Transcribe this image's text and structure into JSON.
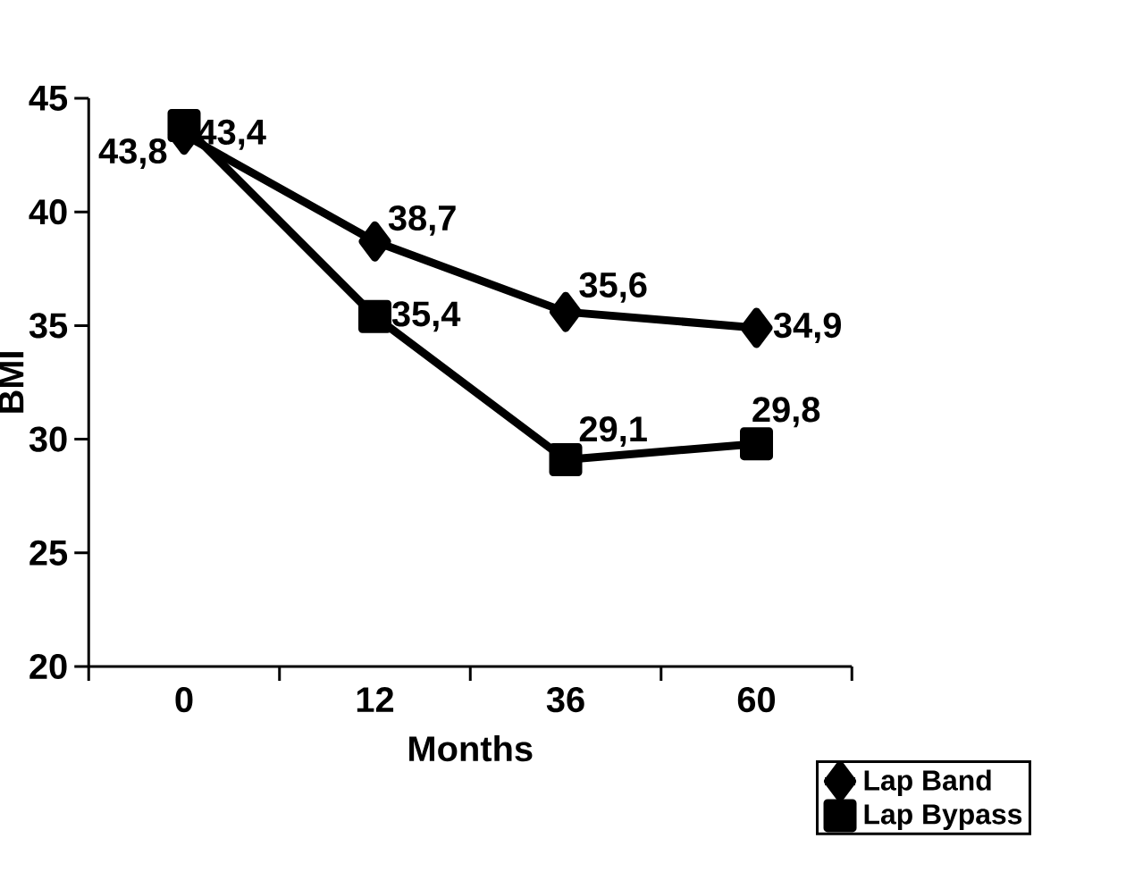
{
  "chart_data": {
    "type": "line",
    "xlabel": "Months",
    "ylabel": "BMI",
    "categories": [
      "0",
      "12",
      "36",
      "60"
    ],
    "series": [
      {
        "name": "Lap Band",
        "color": "#000000",
        "marker": "diamond",
        "values": [
          43.4,
          38.7,
          35.6,
          34.9
        ],
        "value_labels": [
          "43,4",
          "38,7",
          "35,6",
          "34,9"
        ]
      },
      {
        "name": "Lap Bypass",
        "color": "#000000",
        "marker": "square",
        "values": [
          43.8,
          35.4,
          29.1,
          29.8
        ],
        "value_labels": [
          "43,8",
          "35,4",
          "29,1",
          "29,8"
        ]
      }
    ],
    "ylim": [
      20,
      45
    ],
    "yticks": [
      20,
      25,
      30,
      35,
      40,
      45
    ],
    "legend": "bottom right",
    "grid": false,
    "line_style": "solid"
  }
}
